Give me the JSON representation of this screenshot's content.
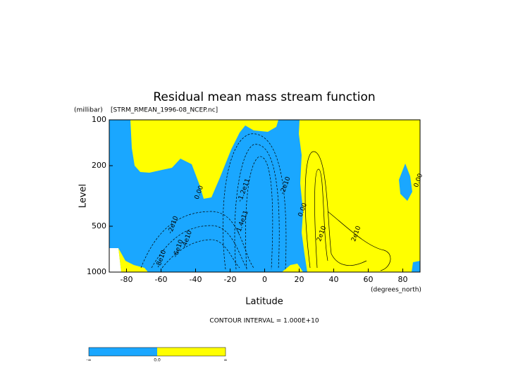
{
  "chart_data": {
    "type": "contour",
    "title": "Residual mean mass stream function",
    "subtitle": "[STRM_RMEAN_1996-08_NCEP.nc]",
    "ylabel": "Level",
    "yunits": "(millibar)",
    "xlabel": "Latitude",
    "xunits": "(degrees_north)",
    "xlim": [
      -90,
      90
    ],
    "xticks": [
      -80,
      -60,
      -40,
      -20,
      0,
      20,
      40,
      60,
      80
    ],
    "ylim": [
      1000,
      100
    ],
    "yticks": [
      100,
      200,
      500,
      1000
    ],
    "log_y": true,
    "contour_interval": "CONTOUR INTERVAL = 1.000E+10",
    "annotations": [
      {
        "text": "0.00",
        "x": -38,
        "y": 300
      },
      {
        "text": "-2e10",
        "x": -53,
        "y": 490
      },
      {
        "text": "-4e10",
        "x": -45,
        "y": 610
      },
      {
        "text": "-6e10",
        "x": -50,
        "y": 700
      },
      {
        "text": "-8e10",
        "x": -60,
        "y": 820
      },
      {
        "text": "-1.2e11",
        "x": -12,
        "y": 290
      },
      {
        "text": "-1.4e11",
        "x": -13,
        "y": 470
      },
      {
        "text": "-2e10",
        "x": 12,
        "y": 270
      },
      {
        "text": "0.00",
        "x": 22,
        "y": 390
      },
      {
        "text": "2e10",
        "x": 33,
        "y": 560
      },
      {
        "text": "2e10",
        "x": 53,
        "y": 560
      },
      {
        "text": "0.00",
        "x": 89,
        "y": 250
      }
    ],
    "colorbar": {
      "colors": [
        "#1aa7ff",
        "#ffff00"
      ],
      "labels": [
        "-∞",
        "0.0",
        "∞"
      ]
    }
  }
}
